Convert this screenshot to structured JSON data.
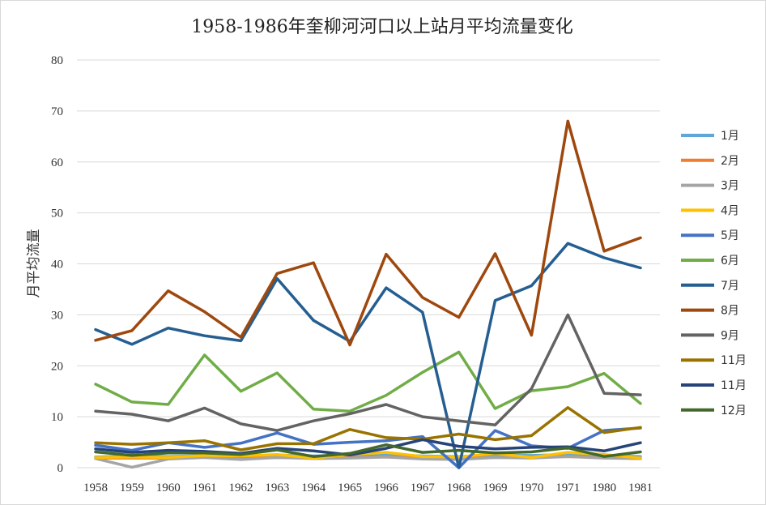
{
  "chart_data": {
    "type": "line",
    "title": "1958-1986年奎柳河河口以上站月平均流量变化",
    "xlabel": "",
    "ylabel": "月平均流量",
    "ylim": [
      0,
      80
    ],
    "yticks": [
      0,
      10,
      20,
      30,
      40,
      50,
      60,
      70,
      80
    ],
    "grid": true,
    "legend": "right",
    "categories": [
      "1958",
      "1959",
      "1960",
      "1961",
      "1962",
      "1963",
      "1964",
      "1965",
      "1966",
      "1967",
      "1968",
      "1969",
      "1970",
      "1971",
      "1980",
      "1981"
    ],
    "series": [
      {
        "name": "1月",
        "color": "#5fa7d6",
        "values": [
          2.1,
          2.3,
          2.2,
          2.4,
          2.2,
          2.5,
          2.3,
          2.4,
          2.5,
          2.3,
          2.2,
          2.5,
          2.4,
          2.6,
          2.4,
          2.2
        ]
      },
      {
        "name": "2月",
        "color": "#ed7d31",
        "values": [
          1.9,
          1.9,
          1.9,
          2.1,
          1.9,
          2.0,
          1.9,
          2.0,
          2.1,
          1.9,
          1.8,
          2.0,
          2.0,
          2.2,
          2.0,
          1.8
        ]
      },
      {
        "name": "3月",
        "color": "#a5a5a5",
        "values": [
          1.8,
          0.1,
          1.7,
          2.0,
          1.6,
          2.0,
          1.8,
          1.9,
          2.1,
          1.7,
          1.6,
          2.0,
          1.9,
          2.2,
          1.9,
          1.8
        ]
      },
      {
        "name": "4月",
        "color": "#ffc000",
        "values": [
          2.0,
          2.1,
          2.0,
          2.4,
          2.3,
          2.6,
          1.9,
          2.6,
          3.0,
          2.2,
          2.1,
          2.8,
          2.0,
          3.0,
          2.6,
          1.9
        ]
      },
      {
        "name": "5月",
        "color": "#4472c4",
        "values": [
          4.4,
          3.4,
          4.9,
          4.0,
          4.8,
          6.8,
          4.6,
          5.0,
          5.3,
          6.1,
          0.0,
          7.3,
          4.3,
          3.8,
          7.3,
          7.8
        ]
      },
      {
        "name": "6月",
        "color": "#70ad47",
        "values": [
          16.4,
          12.9,
          12.4,
          22.1,
          15.0,
          18.6,
          11.5,
          11.1,
          14.2,
          18.7,
          22.7,
          11.6,
          15.1,
          15.9,
          18.5,
          12.6
        ]
      },
      {
        "name": "7月",
        "color": "#255e91",
        "values": [
          27.1,
          24.2,
          27.4,
          25.9,
          24.9,
          37.1,
          28.9,
          24.8,
          35.3,
          30.5,
          0.0,
          32.8,
          35.7,
          44.0,
          41.2,
          39.2
        ]
      },
      {
        "name": "8月",
        "color": "#9e480e",
        "values": [
          25.0,
          26.9,
          34.7,
          30.6,
          25.6,
          38.1,
          40.2,
          24.1,
          41.9,
          33.4,
          29.5,
          42.0,
          26.0,
          68.0,
          42.5,
          45.1
        ]
      },
      {
        "name": "9月",
        "color": "#636363",
        "values": [
          11.1,
          10.5,
          9.2,
          11.7,
          8.6,
          7.3,
          9.2,
          10.6,
          12.4,
          10.0,
          9.2,
          8.4,
          15.5,
          30.0,
          14.6,
          14.3
        ]
      },
      {
        "name": "11月",
        "color": "#997300",
        "values": [
          4.9,
          4.6,
          4.9,
          5.3,
          3.5,
          4.7,
          4.7,
          7.5,
          5.9,
          5.6,
          6.6,
          5.5,
          6.3,
          11.8,
          6.9,
          7.9
        ]
      },
      {
        "name": "11月",
        "color": "#264478",
        "values": [
          3.7,
          3.0,
          3.4,
          3.2,
          2.8,
          3.8,
          3.3,
          2.5,
          3.8,
          5.5,
          4.2,
          3.7,
          4.0,
          4.1,
          3.3,
          4.9
        ]
      },
      {
        "name": "12月",
        "color": "#43682b",
        "values": [
          3.1,
          2.4,
          2.9,
          2.9,
          2.6,
          3.5,
          2.2,
          2.8,
          4.5,
          3.0,
          3.4,
          2.9,
          3.1,
          3.9,
          2.2,
          3.1
        ]
      }
    ]
  }
}
